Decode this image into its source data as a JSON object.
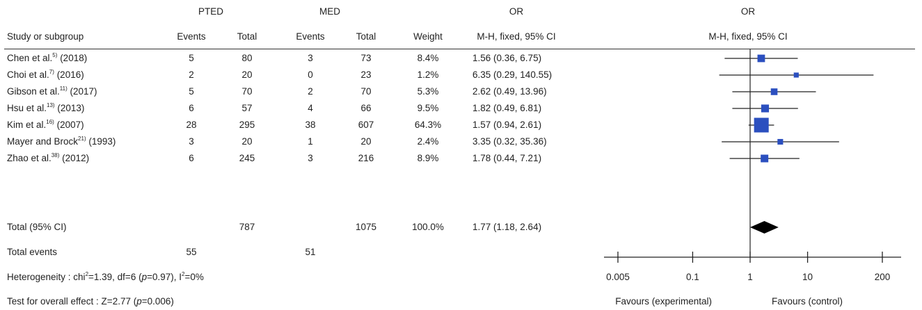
{
  "headers": {
    "group1": "PTED",
    "group2": "MED",
    "or_col": "OR",
    "or_plot": "OR",
    "study": "Study or subgroup",
    "events": "Events",
    "total": "Total",
    "weight": "Weight",
    "method": "M-H, fixed, 95% CI",
    "method_plot": "M-H, fixed, 95% CI"
  },
  "studies": [
    {
      "author": "Chen et al.",
      "ref": "5)",
      "year": "(2018)",
      "e1": "5",
      "t1": "80",
      "e2": "3",
      "t2": "73",
      "weight": "8.4%",
      "ci_text": "1.56 (0.36, 6.75)"
    },
    {
      "author": "Choi et al.",
      "ref": "7)",
      "year": "(2016)",
      "e1": "2",
      "t1": "20",
      "e2": "0",
      "t2": "23",
      "weight": "1.2%",
      "ci_text": "6.35 (0.29, 140.55)"
    },
    {
      "author": "Gibson et al.",
      "ref": "11)",
      "year": "(2017)",
      "e1": "5",
      "t1": "70",
      "e2": "2",
      "t2": "70",
      "weight": "5.3%",
      "ci_text": "2.62 (0.49, 13.96)"
    },
    {
      "author": "Hsu et al.",
      "ref": "13)",
      "year": "(2013)",
      "e1": "6",
      "t1": "57",
      "e2": "4",
      "t2": "66",
      "weight": "9.5%",
      "ci_text": "1.82 (0.49, 6.81)"
    },
    {
      "author": "Kim et al.",
      "ref": "16)",
      "year": "(2007)",
      "e1": "28",
      "t1": "295",
      "e2": "38",
      "t2": "607",
      "weight": "64.3%",
      "ci_text": "1.57 (0.94, 2.61)"
    },
    {
      "author": "Mayer and Brock",
      "ref": "21)",
      "year": "(1993)",
      "e1": "3",
      "t1": "20",
      "e2": "1",
      "t2": "20",
      "weight": "2.4%",
      "ci_text": "3.35 (0.32, 35.36)"
    },
    {
      "author": "Zhao et al.",
      "ref": "38)",
      "year": "(2012)",
      "e1": "6",
      "t1": "245",
      "e2": "3",
      "t2": "216",
      "weight": "8.9%",
      "ci_text": "1.78 (0.44, 7.21)"
    }
  ],
  "total": {
    "label": "Total (95% CI)",
    "t1": "787",
    "t2": "1075",
    "weight": "100.0%",
    "ci_text": "1.77 (1.18, 2.64)"
  },
  "events_row": {
    "label": "Total events",
    "e1": "55",
    "e2": "51"
  },
  "heterogeneity": {
    "prefix": "Heterogeneity : chi",
    "sup1": "2",
    "mid": "=1.39, df=6 (",
    "p": "p",
    "mid2": "=0.97), I",
    "sup2": "2",
    "end": "=0%"
  },
  "overall_effect": {
    "prefix": "Test for overall effect : Z=2.77 (",
    "p": "p",
    "end": "=0.006)"
  },
  "axis": {
    "labels": [
      "0.005",
      "0.1",
      "1",
      "10",
      "200"
    ]
  },
  "favours": {
    "left": "Favours (experimental)",
    "right": "Favours (control)"
  },
  "chart_data": {
    "type": "forest",
    "scale": "log",
    "xlim": [
      0.005,
      200
    ],
    "ticks": [
      0.005,
      0.1,
      1,
      10,
      200
    ],
    "reference_line": 1,
    "studies": [
      {
        "or": 1.56,
        "lo": 0.36,
        "hi": 6.75,
        "weight": 8.4
      },
      {
        "or": 6.35,
        "lo": 0.29,
        "hi": 140.55,
        "weight": 1.2
      },
      {
        "or": 2.62,
        "lo": 0.49,
        "hi": 13.96,
        "weight": 5.3
      },
      {
        "or": 1.82,
        "lo": 0.49,
        "hi": 6.81,
        "weight": 9.5
      },
      {
        "or": 1.57,
        "lo": 0.94,
        "hi": 2.61,
        "weight": 64.3
      },
      {
        "or": 3.35,
        "lo": 0.32,
        "hi": 35.36,
        "weight": 2.4
      },
      {
        "or": 1.78,
        "lo": 0.44,
        "hi": 7.21,
        "weight": 8.9
      }
    ],
    "pooled": {
      "or": 1.77,
      "lo": 1.18,
      "hi": 2.64
    },
    "colors": {
      "square": "#2b4fbf",
      "line": "#222222",
      "diamond": "#000000"
    }
  }
}
